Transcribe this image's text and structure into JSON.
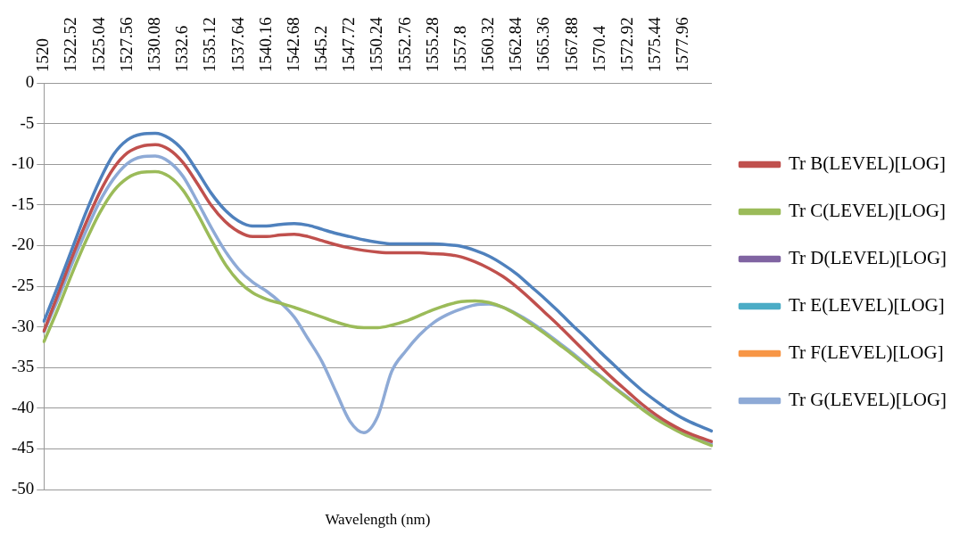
{
  "chart_data": {
    "type": "line",
    "xlabel": "Wavelength (nm)",
    "categories": [
      "1520",
      null,
      "1522.52",
      null,
      "1525.04",
      null,
      "1527.56",
      null,
      "1530.08",
      null,
      "1532.6",
      null,
      "1535.12",
      null,
      "1537.64",
      null,
      "1540.16",
      null,
      "1542.68",
      null,
      "1545.2",
      null,
      "1547.72",
      null,
      "1550.24",
      null,
      "1552.76",
      null,
      "1555.28",
      null,
      "1557.8",
      null,
      "1560.32",
      null,
      "1562.84",
      null,
      "1565.36",
      null,
      "1567.88",
      null,
      "1570.4",
      null,
      "1572.92",
      null,
      "1575.44",
      null,
      "1577.96",
      null,
      null
    ],
    "series": [
      {
        "color": "#4f81bd",
        "values": [
          -29.3,
          -25,
          -20.5,
          -16,
          -12,
          -8.8,
          -7,
          -6.3,
          -6.2,
          -6.8,
          -8.3,
          -10.8,
          -13.5,
          -15.6,
          -17,
          -17.6,
          -17.6,
          -17.4,
          -17.3,
          -17.5,
          -18,
          -18.5,
          -18.9,
          -19.3,
          -19.6,
          -19.8,
          -19.8,
          -19.8,
          -19.8,
          -19.9,
          -20.1,
          -20.6,
          -21.3,
          -22.3,
          -23.5,
          -25,
          -26.5,
          -28.1,
          -29.8,
          -31.4,
          -33.1,
          -34.7,
          -36.3,
          -37.8,
          -39.1,
          -40.3,
          -41.3,
          -42.1,
          -42.8
        ]
      },
      {
        "name": "Tr B(LEVEL)[LOG]",
        "color": "#c0504d",
        "values": [
          -30.5,
          -26,
          -21.5,
          -17.3,
          -13.5,
          -10.5,
          -8.6,
          -7.8,
          -7.6,
          -8.2,
          -9.8,
          -12.3,
          -15,
          -17,
          -18.3,
          -18.9,
          -18.9,
          -18.7,
          -18.6,
          -18.9,
          -19.4,
          -19.9,
          -20.3,
          -20.6,
          -20.8,
          -20.9,
          -20.9,
          -20.9,
          -21,
          -21.1,
          -21.4,
          -22,
          -22.8,
          -23.8,
          -25.1,
          -26.6,
          -28.2,
          -29.8,
          -31.5,
          -33.2,
          -34.9,
          -36.5,
          -38,
          -39.5,
          -40.8,
          -41.9,
          -42.8,
          -43.5,
          -44.1
        ]
      },
      {
        "name": "Tr C(LEVEL)[LOG]",
        "color": "#9bbb59",
        "values": [
          -31.8,
          -27.8,
          -23.5,
          -19.5,
          -16,
          -13.3,
          -11.7,
          -11,
          -10.9,
          -11.5,
          -13.2,
          -16,
          -19.2,
          -22.2,
          -24.4,
          -25.8,
          -26.6,
          -27.1,
          -27.6,
          -28.2,
          -28.8,
          -29.4,
          -29.9,
          -30.1,
          -30.1,
          -29.8,
          -29.3,
          -28.6,
          -27.9,
          -27.3,
          -26.9,
          -26.8,
          -27,
          -27.6,
          -28.5,
          -29.6,
          -30.8,
          -32.1,
          -33.4,
          -34.8,
          -36.1,
          -37.5,
          -38.8,
          -40.1,
          -41.3,
          -42.3,
          -43.2,
          -43.9,
          -44.6
        ]
      },
      {
        "name": "Tr D(LEVEL)[LOG]",
        "color": "#8064a2",
        "values": [
          null,
          null,
          null,
          null,
          null,
          null,
          null,
          null,
          null,
          null,
          null,
          null,
          null,
          null,
          null,
          null,
          null,
          null,
          null,
          null,
          null,
          null,
          null,
          null,
          null,
          null,
          null,
          null,
          null,
          null,
          null,
          null,
          null,
          null,
          null,
          null,
          null,
          null,
          null,
          null,
          null,
          null,
          null,
          null,
          null,
          null,
          null,
          null,
          null
        ]
      },
      {
        "name": "Tr E(LEVEL)[LOG]",
        "color": "#4bacc6",
        "values": [
          null,
          null,
          null,
          null,
          null,
          null,
          null,
          null,
          null,
          null,
          null,
          null,
          null,
          null,
          null,
          null,
          null,
          null,
          null,
          null,
          null,
          null,
          null,
          null,
          null,
          null,
          null,
          null,
          null,
          null,
          null,
          null,
          null,
          null,
          null,
          null,
          null,
          null,
          null,
          null,
          null,
          null,
          null,
          null,
          null,
          null,
          null,
          null,
          null
        ]
      },
      {
        "name": "Tr F(LEVEL)[LOG]",
        "color": "#f79646",
        "values": [
          null,
          null,
          null,
          null,
          null,
          null,
          null,
          null,
          null,
          null,
          null,
          null,
          null,
          null,
          null,
          null,
          null,
          null,
          null,
          null,
          null,
          null,
          null,
          null,
          null,
          null,
          null,
          null,
          null,
          null,
          null,
          null,
          null,
          null,
          null,
          null,
          null,
          null,
          null,
          null,
          null,
          null,
          null,
          null,
          null,
          null,
          null,
          null,
          null
        ]
      },
      {
        "name": "Tr G(LEVEL)[LOG]",
        "color": "#8eaad6",
        "values": [
          -30.6,
          -26.6,
          -22.3,
          -18.3,
          -14.6,
          -11.8,
          -9.9,
          -9.1,
          -9,
          -9.7,
          -11.5,
          -14.5,
          -17.7,
          -20.6,
          -22.9,
          -24.5,
          -25.6,
          -27,
          -28.8,
          -31.5,
          -34.3,
          -38,
          -41.6,
          -43,
          -41,
          -35.5,
          -33,
          -31,
          -29.5,
          -28.5,
          -27.8,
          -27.3,
          -27.2,
          -27.6,
          -28.4,
          -29.4,
          -30.6,
          -31.9,
          -33.2,
          -34.6,
          -36,
          -37.4,
          -38.7,
          -40,
          -41.2,
          -42.2,
          -43.1,
          -43.8,
          -44.4
        ]
      }
    ],
    "ylim": [
      -50,
      0
    ],
    "yticks": [
      0,
      -5,
      -10,
      -15,
      -20,
      -25,
      -30,
      -35,
      -40,
      -45,
      -50
    ],
    "grid": "y",
    "legend": "right",
    "marker": "none"
  }
}
